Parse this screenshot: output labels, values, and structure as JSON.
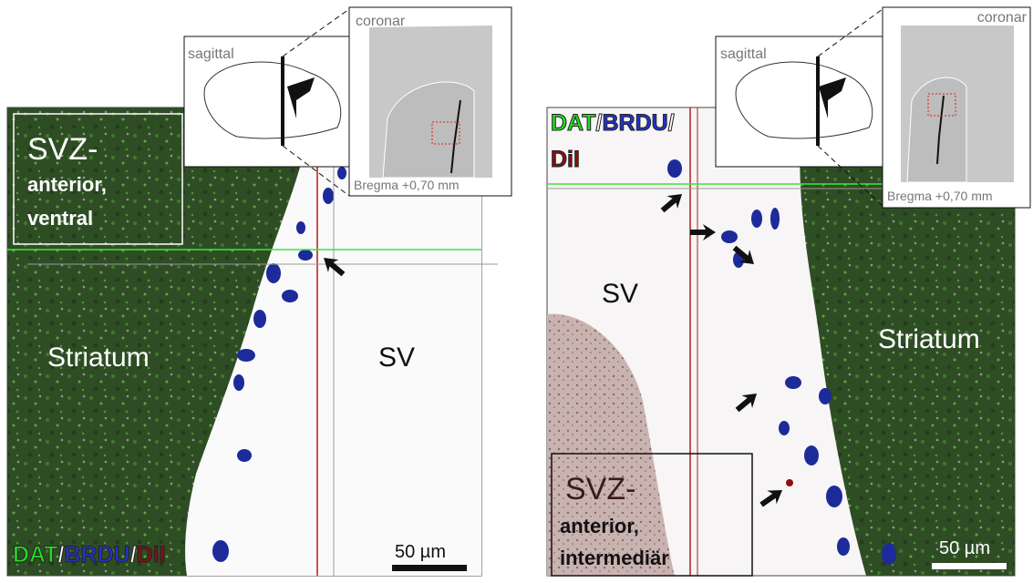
{
  "panels": [
    {
      "region": {
        "line1": "SVZ-",
        "line2": "anterior,",
        "line3": "ventral"
      },
      "labels": {
        "striatum": "Striatum",
        "sv": "SV"
      },
      "stain": [
        "DAT",
        "/",
        "BRDU",
        "/",
        "DiI"
      ],
      "scale_bar": "50 µm",
      "inset": {
        "sagittal": "sagittal",
        "coronar": "coronar",
        "bregma": "Bregma  +0,70 mm"
      }
    },
    {
      "region": {
        "line1": "SVZ-",
        "line2": "anterior,",
        "line3": "intermediär"
      },
      "labels": {
        "striatum": "Striatum",
        "sv": "SV"
      },
      "stain": [
        "DAT",
        "/",
        "BRDU",
        "/",
        "DiI"
      ],
      "scale_bar": "50 µm",
      "inset": {
        "sagittal": "sagittal",
        "coronar": "coronar",
        "bregma": "Bregma +0,70 mm"
      }
    }
  ]
}
